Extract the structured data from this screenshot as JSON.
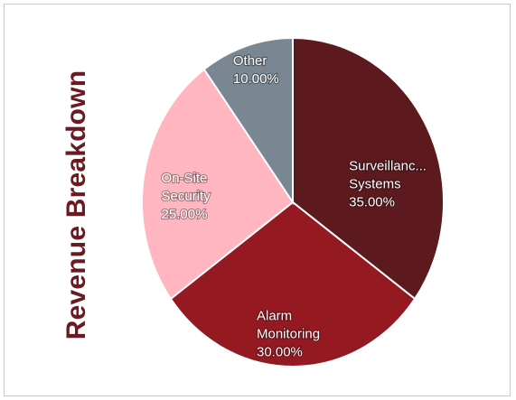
{
  "chart_data": {
    "type": "pie",
    "title": "Revenue Breakdown",
    "categories": [
      "Surveillance Systems",
      "Alarm Monitoring",
      "On-Site Security",
      "Other"
    ],
    "values": [
      35.0,
      30.0,
      25.0,
      10.0
    ],
    "slice_labels": [
      [
        "Surveillanc...",
        "Systems",
        "35.00%"
      ],
      [
        "Alarm",
        "Monitoring",
        "30.00%"
      ],
      [
        "On-Site",
        "Security",
        "25.00%"
      ],
      [
        "Other",
        "10.00%"
      ]
    ],
    "colors": [
      "#5c1a1f",
      "#951921",
      "#ffb6c1",
      "#7a8793"
    ],
    "legend": "none"
  }
}
